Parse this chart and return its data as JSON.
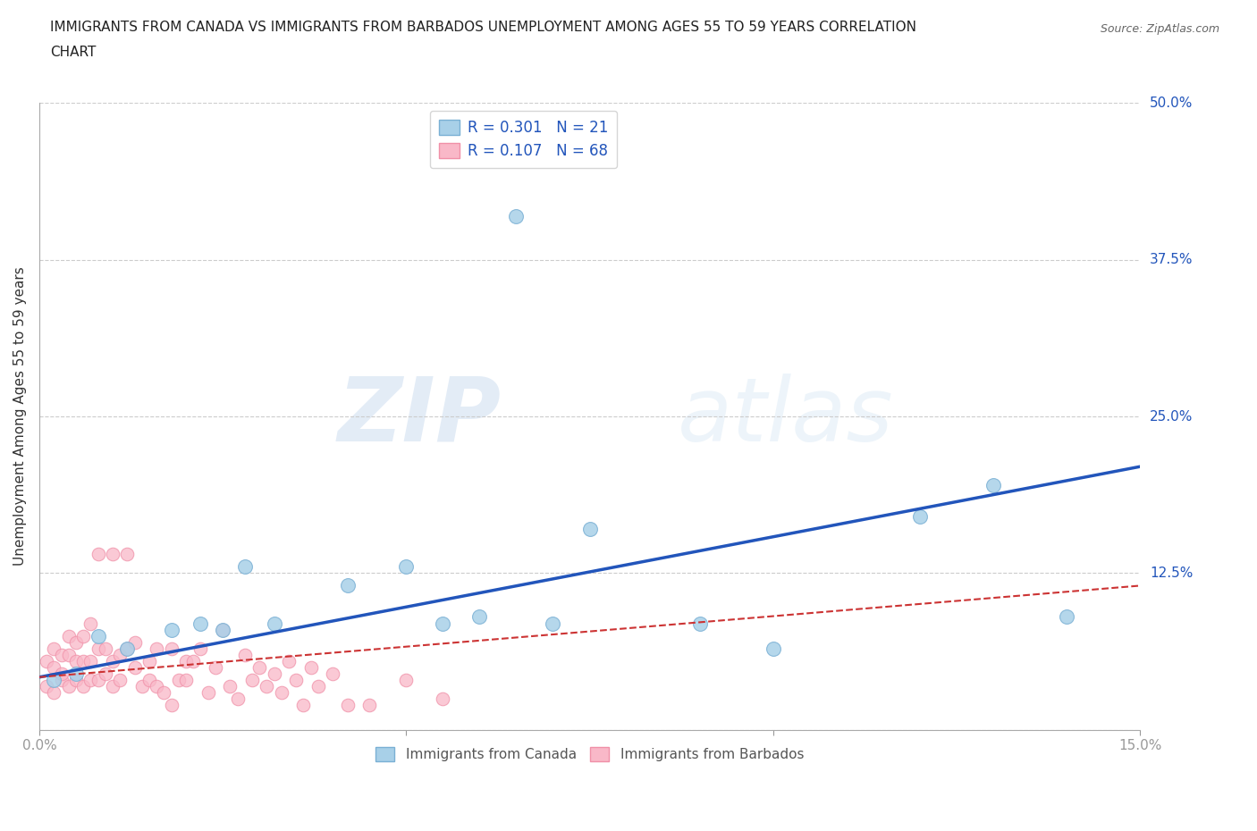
{
  "title_line1": "IMMIGRANTS FROM CANADA VS IMMIGRANTS FROM BARBADOS UNEMPLOYMENT AMONG AGES 55 TO 59 YEARS CORRELATION",
  "title_line2": "CHART",
  "source_text": "Source: ZipAtlas.com",
  "ylabel": "Unemployment Among Ages 55 to 59 years",
  "xlabel_canada": "Immigrants from Canada",
  "xlabel_barbados": "Immigrants from Barbados",
  "watermark_zip": "ZIP",
  "watermark_atlas": "atlas",
  "xlim": [
    0.0,
    0.15
  ],
  "ylim": [
    0.0,
    0.5
  ],
  "yticks": [
    0.0,
    0.125,
    0.25,
    0.375,
    0.5
  ],
  "ytick_labels": [
    "",
    "12.5%",
    "25.0%",
    "37.5%",
    "50.0%"
  ],
  "canada_color": "#a8d0e8",
  "canada_edge_color": "#7ab0d4",
  "barbados_color": "#f9b8c8",
  "barbados_edge_color": "#f090a8",
  "canada_line_color": "#2255bb",
  "barbados_line_color": "#cc3333",
  "legend_text_color": "#2255bb",
  "canada_R": 0.301,
  "canada_N": 21,
  "barbados_R": 0.107,
  "barbados_N": 68,
  "canada_scatter_x": [
    0.002,
    0.005,
    0.008,
    0.012,
    0.018,
    0.022,
    0.025,
    0.028,
    0.032,
    0.042,
    0.05,
    0.055,
    0.06,
    0.065,
    0.07,
    0.075,
    0.09,
    0.1,
    0.12,
    0.13,
    0.14
  ],
  "canada_scatter_y": [
    0.04,
    0.045,
    0.075,
    0.065,
    0.08,
    0.085,
    0.08,
    0.13,
    0.085,
    0.115,
    0.13,
    0.085,
    0.09,
    0.41,
    0.085,
    0.16,
    0.085,
    0.065,
    0.17,
    0.195,
    0.09
  ],
  "barbados_scatter_x": [
    0.001,
    0.001,
    0.002,
    0.002,
    0.002,
    0.003,
    0.003,
    0.003,
    0.004,
    0.004,
    0.004,
    0.005,
    0.005,
    0.005,
    0.006,
    0.006,
    0.006,
    0.007,
    0.007,
    0.007,
    0.008,
    0.008,
    0.008,
    0.009,
    0.009,
    0.01,
    0.01,
    0.01,
    0.011,
    0.011,
    0.012,
    0.012,
    0.013,
    0.013,
    0.014,
    0.015,
    0.015,
    0.016,
    0.016,
    0.017,
    0.018,
    0.018,
    0.019,
    0.02,
    0.02,
    0.021,
    0.022,
    0.023,
    0.024,
    0.025,
    0.026,
    0.027,
    0.028,
    0.029,
    0.03,
    0.031,
    0.032,
    0.033,
    0.034,
    0.035,
    0.036,
    0.037,
    0.038,
    0.04,
    0.042,
    0.045,
    0.05,
    0.055
  ],
  "barbados_scatter_y": [
    0.035,
    0.055,
    0.03,
    0.05,
    0.065,
    0.04,
    0.06,
    0.045,
    0.035,
    0.06,
    0.075,
    0.04,
    0.055,
    0.07,
    0.035,
    0.055,
    0.075,
    0.04,
    0.055,
    0.085,
    0.04,
    0.065,
    0.14,
    0.045,
    0.065,
    0.035,
    0.055,
    0.14,
    0.04,
    0.06,
    0.065,
    0.14,
    0.05,
    0.07,
    0.035,
    0.055,
    0.04,
    0.035,
    0.065,
    0.03,
    0.065,
    0.02,
    0.04,
    0.055,
    0.04,
    0.055,
    0.065,
    0.03,
    0.05,
    0.08,
    0.035,
    0.025,
    0.06,
    0.04,
    0.05,
    0.035,
    0.045,
    0.03,
    0.055,
    0.04,
    0.02,
    0.05,
    0.035,
    0.045,
    0.02,
    0.02,
    0.04,
    0.025
  ],
  "canada_regline_x": [
    0.0,
    0.15
  ],
  "canada_regline_y": [
    0.042,
    0.21
  ],
  "barbados_regline_x": [
    0.0,
    0.15
  ],
  "barbados_regline_y": [
    0.042,
    0.115
  ],
  "background_color": "#ffffff",
  "grid_color": "#cccccc",
  "title_fontsize": 11,
  "axis_label_fontsize": 11,
  "tick_fontsize": 11,
  "legend_fontsize": 12
}
